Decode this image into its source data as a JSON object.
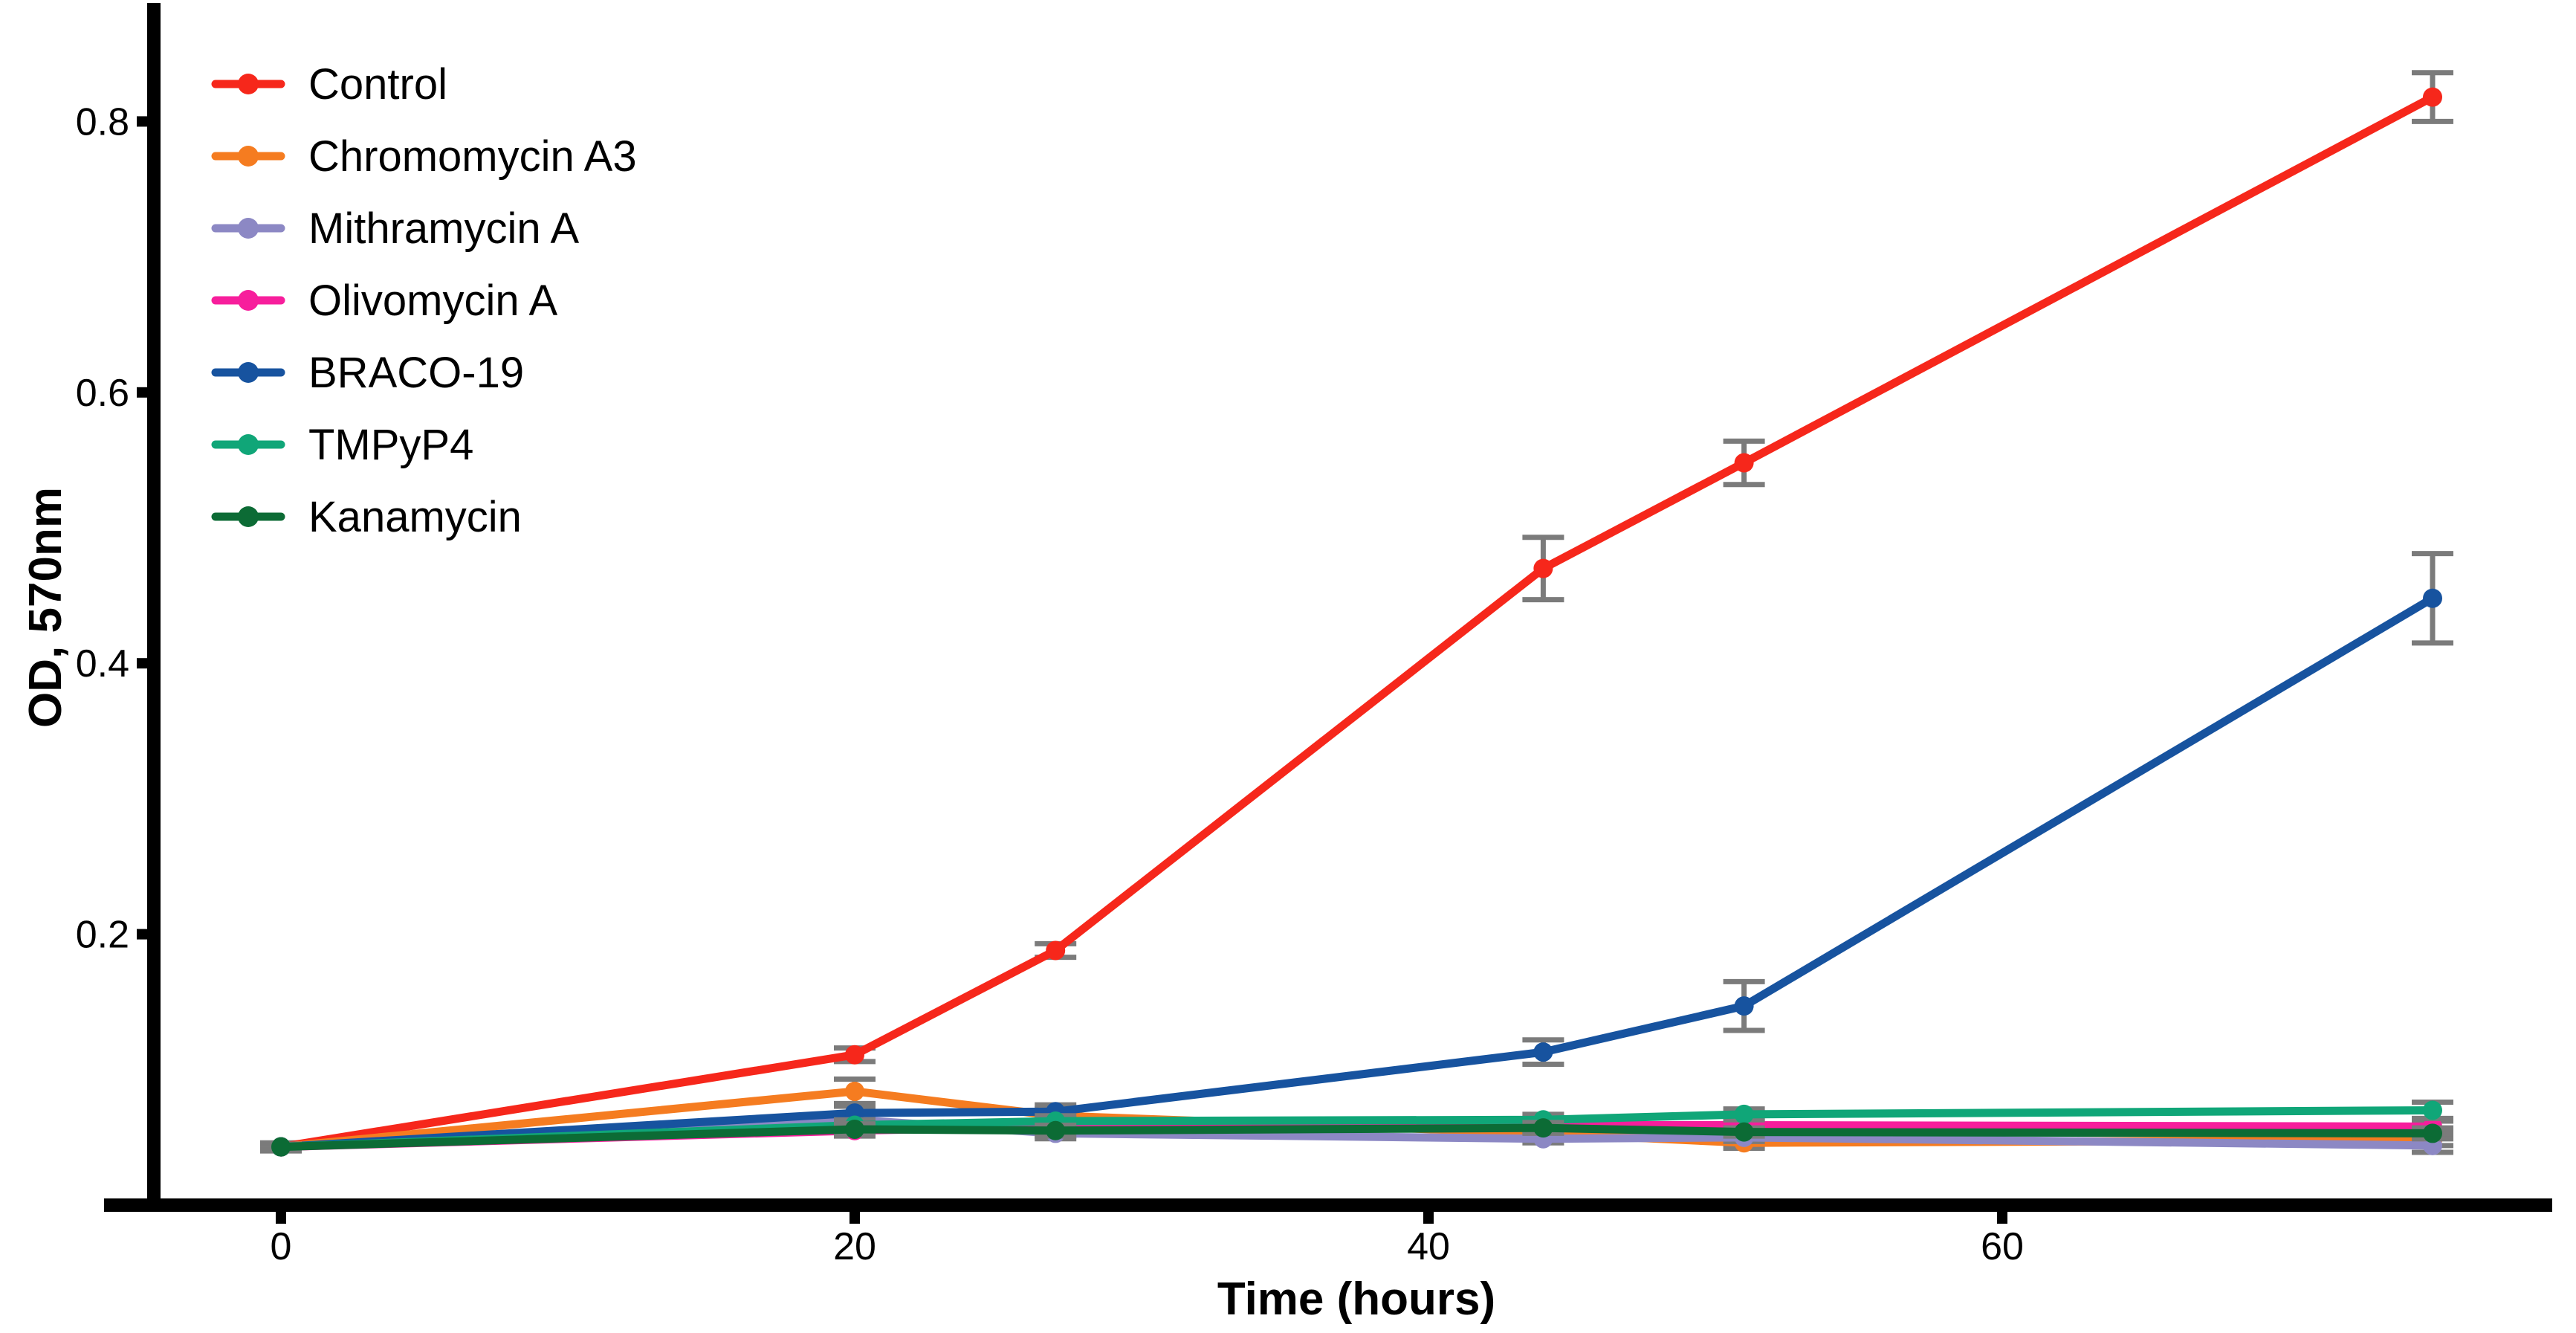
{
  "chart_data": {
    "type": "line",
    "title": "",
    "xlabel": "Time (hours)",
    "ylabel": "OD, 570nm",
    "x_ticks": [
      "0",
      "20",
      "40",
      "60"
    ],
    "x_tick_values": [
      0,
      20,
      40,
      60
    ],
    "y_ticks": [
      "0.2",
      "0.4",
      "0.6",
      "0.8"
    ],
    "y_tick_values": [
      0.2,
      0.4,
      0.6,
      0.8
    ],
    "xlim": [
      -5,
      80
    ],
    "ylim": [
      0,
      0.885
    ],
    "grid": false,
    "error_bars": true,
    "error_bar_color": "#7b7b7b",
    "axis_color": "#000000",
    "legend_position": "upper-left-inside",
    "x": [
      0,
      20,
      27,
      44,
      51,
      75
    ],
    "series": [
      {
        "name": "Control",
        "color": "#f6271b",
        "values": [
          0.043,
          0.111,
          0.188,
          0.47,
          0.548,
          0.818
        ],
        "errors": [
          0.003,
          0.005,
          0.005,
          0.023,
          0.016,
          0.018
        ]
      },
      {
        "name": "Chromomycin A3",
        "color": "#f57c20",
        "values": [
          0.043,
          0.084,
          0.066,
          0.053,
          0.046,
          0.048
        ],
        "errors": [
          0.002,
          0.009,
          0.005,
          0.003,
          0.004,
          0.004
        ]
      },
      {
        "name": "Mithramycin A",
        "color": "#8c88c4",
        "values": [
          0.043,
          0.063,
          0.053,
          0.049,
          0.05,
          0.044
        ],
        "errors": [
          0.002,
          0.004,
          0.004,
          0.003,
          0.003,
          0.005
        ]
      },
      {
        "name": "Olivomycin A",
        "color": "#f71e9c",
        "values": [
          0.043,
          0.055,
          0.058,
          0.059,
          0.059,
          0.058
        ],
        "errors": [
          0.002,
          0.004,
          0.003,
          0.003,
          0.003,
          0.004
        ]
      },
      {
        "name": "BRACO-19",
        "color": "#17539f",
        "values": [
          0.043,
          0.068,
          0.069,
          0.113,
          0.147,
          0.448
        ],
        "errors": [
          0.002,
          0.005,
          0.005,
          0.009,
          0.018,
          0.033
        ]
      },
      {
        "name": "TMPyP4",
        "color": "#10a678",
        "values": [
          0.043,
          0.059,
          0.062,
          0.063,
          0.067,
          0.07
        ],
        "errors": [
          0.002,
          0.004,
          0.004,
          0.004,
          0.004,
          0.006
        ]
      },
      {
        "name": "Kanamycin",
        "color": "#0c6b35",
        "values": [
          0.043,
          0.056,
          0.055,
          0.057,
          0.054,
          0.053
        ],
        "errors": [
          0.002,
          0.004,
          0.004,
          0.004,
          0.003,
          0.004
        ]
      }
    ]
  }
}
